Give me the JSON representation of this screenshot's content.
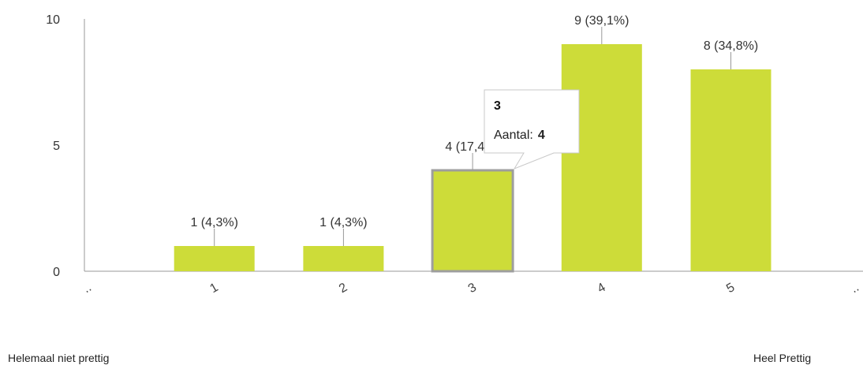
{
  "chart_data": {
    "type": "bar",
    "categories": [
      "1",
      "2",
      "3",
      "4",
      "5"
    ],
    "values": [
      1,
      1,
      4,
      9,
      8
    ],
    "data_labels": [
      "1 (4,3%)",
      "1 (4,3%)",
      "4 (17,4%)",
      "9 (39,1%)",
      "8 (34,8%)"
    ],
    "ylim": [
      0,
      10
    ],
    "yticks": [
      0,
      5,
      10
    ],
    "axis_edge_tick_labels": [
      "..",
      ".."
    ],
    "bar_color": "#cddc39",
    "highlighted_index": 2,
    "grid": false,
    "legend": "none"
  },
  "tooltip": {
    "title": "3",
    "label": "Aantal:",
    "value": "4"
  },
  "scale_labels": {
    "left": "Helemaal niet prettig",
    "right": "Heel Prettig"
  }
}
